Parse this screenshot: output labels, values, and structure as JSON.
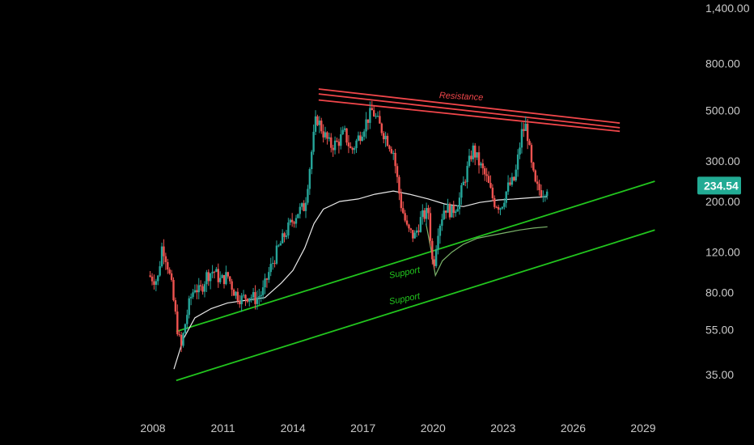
{
  "chart_data": {
    "type": "candlestick",
    "y_scale": "log",
    "ylim": [
      30,
      1500
    ],
    "xlim": [
      2007.7,
      2029.6
    ],
    "y_ticks": [
      "1,400.00",
      "800.00",
      "500.00",
      "300.00",
      "200.00",
      "120.00",
      "80.00",
      "55.00",
      "35.00"
    ],
    "y_tick_values": [
      1400,
      800,
      500,
      300,
      200,
      120,
      80,
      55,
      35
    ],
    "x_ticks": [
      "2008",
      "2011",
      "2014",
      "2017",
      "2020",
      "2023",
      "2026",
      "2029"
    ],
    "x_tick_values": [
      2008,
      2011,
      2014,
      2017,
      2020,
      2023,
      2026,
      2029
    ],
    "last_price": "234.54",
    "last_price_value": 234.54,
    "grid": false,
    "colors": {
      "up": "#26a69a",
      "down": "#ef5350",
      "support": "#22c51e",
      "resistance": "#f0464a",
      "ma_white": "#e8e8e8",
      "ma_green": "#7bb36a",
      "price_tag": "#22ab94"
    },
    "price_path": [
      [
        2007.8,
        95
      ],
      [
        2008.2,
        90
      ],
      [
        2008.4,
        130
      ],
      [
        2008.6,
        110
      ],
      [
        2008.8,
        85
      ],
      [
        2009.0,
        60
      ],
      [
        2009.2,
        45
      ],
      [
        2009.4,
        60
      ],
      [
        2009.6,
        75
      ],
      [
        2009.8,
        85
      ],
      [
        2010.0,
        80
      ],
      [
        2010.3,
        95
      ],
      [
        2010.6,
        100
      ],
      [
        2010.9,
        90
      ],
      [
        2011.2,
        95
      ],
      [
        2011.5,
        80
      ],
      [
        2011.8,
        75
      ],
      [
        2012.1,
        78
      ],
      [
        2012.4,
        75
      ],
      [
        2012.7,
        80
      ],
      [
        2013.0,
        100
      ],
      [
        2013.3,
        120
      ],
      [
        2013.6,
        140
      ],
      [
        2013.9,
        160
      ],
      [
        2014.2,
        180
      ],
      [
        2014.5,
        190
      ],
      [
        2014.8,
        330
      ],
      [
        2015.0,
        470
      ],
      [
        2015.3,
        400
      ],
      [
        2015.6,
        350
      ],
      [
        2015.9,
        360
      ],
      [
        2016.2,
        400
      ],
      [
        2016.5,
        330
      ],
      [
        2016.8,
        380
      ],
      [
        2017.1,
        440
      ],
      [
        2017.4,
        500
      ],
      [
        2017.7,
        430
      ],
      [
        2018.0,
        380
      ],
      [
        2018.3,
        330
      ],
      [
        2018.6,
        200
      ],
      [
        2018.9,
        150
      ],
      [
        2019.2,
        140
      ],
      [
        2019.5,
        170
      ],
      [
        2019.8,
        180
      ],
      [
        2020.0,
        100
      ],
      [
        2020.2,
        150
      ],
      [
        2020.5,
        190
      ],
      [
        2020.8,
        180
      ],
      [
        2021.1,
        200
      ],
      [
        2021.4,
        260
      ],
      [
        2021.7,
        340
      ],
      [
        2022.0,
        290
      ],
      [
        2022.3,
        250
      ],
      [
        2022.6,
        200
      ],
      [
        2022.9,
        190
      ],
      [
        2023.2,
        230
      ],
      [
        2023.5,
        250
      ],
      [
        2023.8,
        400
      ],
      [
        2024.0,
        430
      ],
      [
        2024.2,
        290
      ],
      [
        2024.4,
        230
      ],
      [
        2024.7,
        220
      ],
      [
        2024.9,
        234.54
      ]
    ],
    "moving_average_white": [
      [
        2008.9,
        37
      ],
      [
        2009.3,
        50
      ],
      [
        2009.8,
        62
      ],
      [
        2010.5,
        68
      ],
      [
        2011.2,
        72
      ],
      [
        2012.0,
        74
      ],
      [
        2012.8,
        76
      ],
      [
        2013.5,
        88
      ],
      [
        2014.0,
        100
      ],
      [
        2014.5,
        125
      ],
      [
        2014.9,
        160
      ],
      [
        2015.3,
        185
      ],
      [
        2016.0,
        200
      ],
      [
        2016.8,
        205
      ],
      [
        2017.5,
        215
      ],
      [
        2018.3,
        222
      ],
      [
        2019.0,
        215
      ],
      [
        2019.8,
        205
      ],
      [
        2020.5,
        195
      ],
      [
        2021.3,
        190
      ],
      [
        2022.0,
        198
      ],
      [
        2022.8,
        203
      ],
      [
        2023.5,
        205
      ],
      [
        2024.3,
        208
      ],
      [
        2024.9,
        210
      ]
    ],
    "moving_average_green": [
      [
        2019.7,
        160
      ],
      [
        2019.9,
        125
      ],
      [
        2020.1,
        95
      ],
      [
        2020.4,
        110
      ],
      [
        2020.8,
        120
      ],
      [
        2021.3,
        130
      ],
      [
        2021.9,
        138
      ],
      [
        2022.5,
        142
      ],
      [
        2023.1,
        146
      ],
      [
        2023.7,
        150
      ],
      [
        2024.3,
        153
      ],
      [
        2024.9,
        155
      ]
    ],
    "trendlines": [
      {
        "label": "Resistance",
        "color_key": "resistance",
        "x": [
          2015.1,
          2028.0
        ],
        "y": [
          555,
          405
        ]
      },
      {
        "label": "",
        "color_key": "resistance",
        "x": [
          2015.1,
          2028.0
        ],
        "y": [
          590,
          420
        ]
      },
      {
        "label": "",
        "color_key": "resistance",
        "x": [
          2015.1,
          2028.0
        ],
        "y": [
          620,
          440
        ]
      },
      {
        "label": "Support",
        "color_key": "support",
        "x": [
          2009.0,
          2029.5
        ],
        "y": [
          54,
          245
        ]
      },
      {
        "label": "Support",
        "color_key": "support",
        "x": [
          2009.0,
          2029.5
        ],
        "y": [
          33,
          150
        ]
      }
    ],
    "annotations": [
      {
        "text": "Resistance",
        "color_key": "resistance",
        "x": 2021.2,
        "y": 560,
        "angle": 3
      },
      {
        "text": "Support",
        "color_key": "support",
        "x": 2018.8,
        "y": 95,
        "angle": -11
      },
      {
        "text": "Support",
        "color_key": "support",
        "x": 2018.8,
        "y": 73,
        "angle": -11
      }
    ]
  }
}
